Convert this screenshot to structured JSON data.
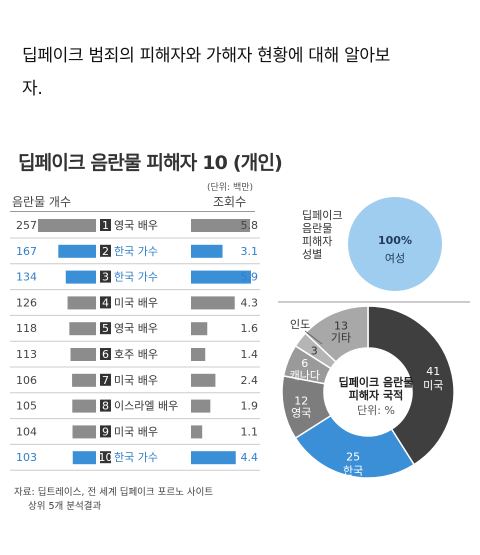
{
  "intro": {
    "line1": "딥페이크 범죄의 피해자와 가해자 현황에 대해 알아보",
    "line2": "자."
  },
  "chart_data": [
    {
      "type": "bar",
      "title": "딥페이크 음란물 피해자 10 (개인)",
      "unit_note": "(단위: 백만)",
      "left_header": "음란물 개수",
      "right_header": "조회수",
      "rows": [
        {
          "rank": "1",
          "name": "영국 배우",
          "count": 257,
          "views": 5.8,
          "highlight": false
        },
        {
          "rank": "2",
          "name": "한국 가수",
          "count": 167,
          "views": 3.1,
          "highlight": true
        },
        {
          "rank": "3",
          "name": "한국 가수",
          "count": 134,
          "views": 5.9,
          "highlight": true
        },
        {
          "rank": "4",
          "name": "미국 배우",
          "count": 126,
          "views": 4.3,
          "highlight": false
        },
        {
          "rank": "5",
          "name": "영국 배우",
          "count": 118,
          "views": 1.6,
          "highlight": false
        },
        {
          "rank": "6",
          "name": "호주 배우",
          "count": 113,
          "views": 1.4,
          "highlight": false
        },
        {
          "rank": "7",
          "name": "미국 배우",
          "count": 106,
          "views": 2.4,
          "highlight": false
        },
        {
          "rank": "8",
          "name": "이스라엘 배우",
          "count": 105,
          "views": 1.9,
          "highlight": false
        },
        {
          "rank": "9",
          "name": "미국 배우",
          "count": 104,
          "views": 1.1,
          "highlight": false
        },
        {
          "rank": "10",
          "name": "한국 가수",
          "count": 103,
          "views": 4.4,
          "highlight": true
        }
      ]
    },
    {
      "type": "pie",
      "title_lines": [
        "딥페이크",
        "음란물",
        "피해자",
        "성별"
      ],
      "value": "100%",
      "label": "여성"
    },
    {
      "type": "pie",
      "title_lines": [
        "딥페이크 음란물",
        "피해자 국적"
      ],
      "unit_note": "단위: %",
      "slices": [
        {
          "name": "미국",
          "value": 41,
          "color": "#3f3f3f",
          "label_color": "#ffffff"
        },
        {
          "name": "한국",
          "value": 25,
          "color": "#3a8fd6",
          "label_color": "#ffffff"
        },
        {
          "name": "영국",
          "value": 12,
          "color": "#7d7d7d",
          "label_color": "#ffffff"
        },
        {
          "name": "캐나다",
          "value": 6,
          "color": "#9a9a9a",
          "label_color": "#ffffff"
        },
        {
          "name": "",
          "value": 3,
          "color": "#b5b5b5",
          "label_color": "#333333"
        },
        {
          "name": "기타",
          "value": 13,
          "color": "#a8a8a8",
          "label_color": "#333333"
        }
      ],
      "outside_labels": [
        "인도"
      ]
    }
  ],
  "source": {
    "line1": "자료: 딥트레이스, 전 세계 딥페이크 포르노 사이트",
    "line2": "상위 5개 분석결과"
  },
  "colors": {
    "gray_bar": "#8c8c8c",
    "blue": "#3a8fd6",
    "highlight_text": "#2f7fc9",
    "badge": "#333333"
  }
}
